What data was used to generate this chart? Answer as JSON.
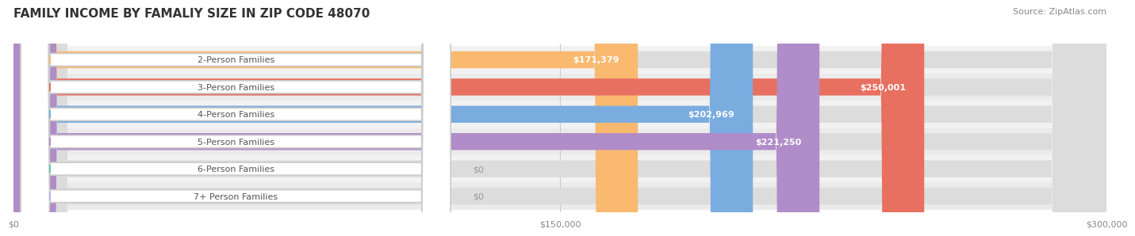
{
  "title": "FAMILY INCOME BY FAMALIY SIZE IN ZIP CODE 48070",
  "source": "Source: ZipAtlas.com",
  "categories": [
    "2-Person Families",
    "3-Person Families",
    "4-Person Families",
    "5-Person Families",
    "6-Person Families",
    "7+ Person Families"
  ],
  "values": [
    171379,
    250001,
    202969,
    221250,
    0,
    0
  ],
  "bar_colors": [
    "#f9b96e",
    "#e87060",
    "#7aace0",
    "#b08cc8",
    "#5ec8b8",
    "#b0b8e8"
  ],
  "bar_bg_color": "#e8e8e8",
  "row_bg_colors": [
    "#f5f5f5",
    "#f0f0f0"
  ],
  "label_bg": "#ffffff",
  "label_text_color": "#555555",
  "value_text_color_inside": "#ffffff",
  "value_text_color_outside": "#888888",
  "xlim": [
    0,
    300000
  ],
  "xticks": [
    0,
    150000,
    300000
  ],
  "xtick_labels": [
    "$0",
    "$150,000",
    "$300,000"
  ],
  "title_fontsize": 11,
  "source_fontsize": 8,
  "label_fontsize": 8,
  "value_fontsize": 8,
  "tick_fontsize": 8,
  "bar_height": 0.62,
  "background_color": "#ffffff"
}
